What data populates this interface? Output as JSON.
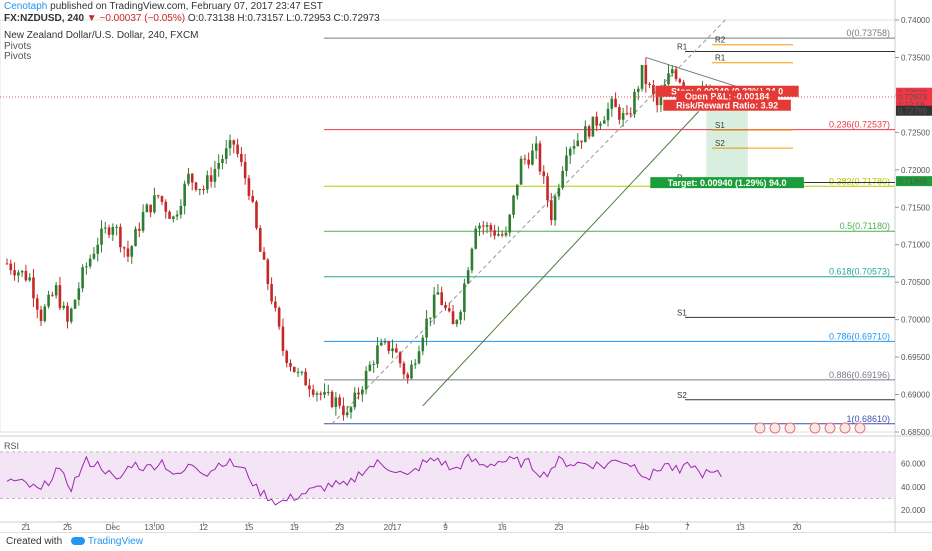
{
  "header": {
    "author": "Cenotaph",
    "published": " published on TradingView.com, February 07, 2017 23:47 EST",
    "symbol": "FX:NZDUSD, 240",
    "change": "▼ −0.00037 (−0.05%)",
    "ohlc": "O:0.73138 H:0.73157 L:0.72953 C:0.72973",
    "instrument": "New Zealand Dollar/U.S. Dollar, 240, FXCM",
    "indicator1": "Pivots",
    "indicator2": "Pivots",
    "rsi_label": "RSI"
  },
  "footer": {
    "created_with": "Created with",
    "brand": "TradingView"
  },
  "colors": {
    "up": "#2e7d32",
    "down": "#c62828",
    "rsi": "#9c27b0",
    "rsi_fill": "#f3e5f5"
  },
  "chart_data": {
    "type": "candlestick",
    "price_axis": {
      "min": 0.685,
      "max": 0.74,
      "ticks": [
        "0.74000",
        "0.73500",
        "0.73000",
        "0.72500",
        "0.72000",
        "0.71500",
        "0.71000",
        "0.70500",
        "0.70000",
        "0.69500",
        "0.69000",
        "0.68500"
      ]
    },
    "rsi_axis": {
      "ticks": [
        "60.000",
        "40.000",
        "20.000"
      ],
      "upper": 70,
      "lower": 30
    },
    "x_ticks": [
      {
        "label": "21",
        "idx": 5
      },
      {
        "label": "25",
        "idx": 16
      },
      {
        "label": "Dec",
        "idx": 28
      },
      {
        "label": "13:00",
        "idx": 39
      },
      {
        "label": "12",
        "idx": 52
      },
      {
        "label": "15",
        "idx": 64
      },
      {
        "label": "19",
        "idx": 76
      },
      {
        "label": "23",
        "idx": 88
      },
      {
        "label": "2017",
        "idx": 102
      },
      {
        "label": "9",
        "idx": 116
      },
      {
        "label": "16",
        "idx": 131
      },
      {
        "label": "23",
        "idx": 146
      },
      {
        "label": "Feb",
        "idx": 168
      },
      {
        "label": "7",
        "idx": 180
      },
      {
        "label": "13",
        "idx": 194
      },
      {
        "label": "20",
        "idx": 209
      }
    ],
    "candle_count": 190,
    "price_path": [
      [
        0,
        0.7075
      ],
      [
        6,
        0.7055
      ],
      [
        9,
        0.7005
      ],
      [
        13,
        0.704
      ],
      [
        16,
        0.6995
      ],
      [
        20,
        0.706
      ],
      [
        24,
        0.7105
      ],
      [
        28,
        0.713
      ],
      [
        32,
        0.7085
      ],
      [
        36,
        0.714
      ],
      [
        40,
        0.7165
      ],
      [
        44,
        0.7135
      ],
      [
        48,
        0.719
      ],
      [
        52,
        0.7175
      ],
      [
        56,
        0.721
      ],
      [
        60,
        0.7235
      ],
      [
        62,
        0.7205
      ],
      [
        64,
        0.7175
      ],
      [
        67,
        0.709
      ],
      [
        70,
        0.703
      ],
      [
        73,
        0.696
      ],
      [
        77,
        0.6925
      ],
      [
        80,
        0.6915
      ],
      [
        84,
        0.6895
      ],
      [
        88,
        0.689
      ],
      [
        90,
        0.687
      ],
      [
        94,
        0.6915
      ],
      [
        98,
        0.696
      ],
      [
        102,
        0.6965
      ],
      [
        106,
        0.692
      ],
      [
        110,
        0.6985
      ],
      [
        114,
        0.7035
      ],
      [
        118,
        0.699
      ],
      [
        120,
        0.702
      ],
      [
        124,
        0.713
      ],
      [
        128,
        0.712
      ],
      [
        132,
        0.711
      ],
      [
        136,
        0.721
      ],
      [
        140,
        0.7225
      ],
      [
        144,
        0.714
      ],
      [
        148,
        0.723
      ],
      [
        152,
        0.7245
      ],
      [
        156,
        0.7265
      ],
      [
        160,
        0.7285
      ],
      [
        164,
        0.7265
      ],
      [
        168,
        0.733
      ],
      [
        172,
        0.7285
      ],
      [
        176,
        0.7335
      ],
      [
        180,
        0.731
      ],
      [
        183,
        0.73
      ],
      [
        189,
        0.7297
      ]
    ],
    "rsi_path": [
      [
        0,
        46
      ],
      [
        5,
        42
      ],
      [
        9,
        36
      ],
      [
        13,
        55
      ],
      [
        17,
        40
      ],
      [
        21,
        62
      ],
      [
        25,
        58
      ],
      [
        29,
        44
      ],
      [
        33,
        60
      ],
      [
        37,
        56
      ],
      [
        41,
        62
      ],
      [
        45,
        48
      ],
      [
        49,
        60
      ],
      [
        53,
        52
      ],
      [
        57,
        62
      ],
      [
        61,
        58
      ],
      [
        64,
        50
      ],
      [
        66,
        38
      ],
      [
        69,
        32
      ],
      [
        72,
        26
      ],
      [
        75,
        30
      ],
      [
        78,
        34
      ],
      [
        82,
        38
      ],
      [
        86,
        42
      ],
      [
        90,
        40
      ],
      [
        94,
        54
      ],
      [
        98,
        60
      ],
      [
        102,
        56
      ],
      [
        106,
        48
      ],
      [
        110,
        60
      ],
      [
        114,
        64
      ],
      [
        118,
        54
      ],
      [
        122,
        64
      ],
      [
        126,
        58
      ],
      [
        130,
        62
      ],
      [
        134,
        62
      ],
      [
        138,
        60
      ],
      [
        142,
        50
      ],
      [
        146,
        62
      ],
      [
        150,
        60
      ],
      [
        154,
        60
      ],
      [
        158,
        58
      ],
      [
        162,
        64
      ],
      [
        166,
        58
      ],
      [
        170,
        48
      ],
      [
        174,
        60
      ],
      [
        178,
        52
      ],
      [
        181,
        60
      ],
      [
        183,
        52
      ],
      [
        189,
        50
      ]
    ],
    "fibonacci": [
      {
        "label": "0(0.73758)",
        "value": 0.73758,
        "color": "#787b86"
      },
      {
        "label": "0.236(0.72537)",
        "value": 0.72537,
        "color": "#f23645"
      },
      {
        "label": "0.382(0.71780)",
        "value": 0.7178,
        "color": "#b5c900"
      },
      {
        "label": "0.5(0.71180)",
        "value": 0.7118,
        "color": "#4caf50"
      },
      {
        "label": "0.618(0.70573)",
        "value": 0.70573,
        "color": "#26a69a"
      },
      {
        "label": "0.786(0.69710)",
        "value": 0.6971,
        "color": "#2196f3"
      },
      {
        "label": "0.886(0.69196)",
        "value": 0.69196,
        "color": "#787b86"
      },
      {
        "label": "1(0.68610)",
        "value": 0.6861,
        "color": "#3f51b5"
      }
    ],
    "pivots": [
      {
        "label": "R2",
        "value": 0.7367,
        "color": "#ff9800"
      },
      {
        "label": "R1",
        "value": 0.7343,
        "color": "#ff9800"
      },
      {
        "label": "S1",
        "value": 0.7253,
        "color": "#ff9800"
      },
      {
        "label": "S2",
        "value": 0.7229,
        "color": "#ff9800"
      },
      {
        "label": "R1",
        "value": 0.7358,
        "color": "#333333"
      },
      {
        "label": "P",
        "value": 0.7183,
        "color": "#333333"
      },
      {
        "label": "S1",
        "value": 0.7003,
        "color": "#333333"
      },
      {
        "label": "S2",
        "value": 0.6893,
        "color": "#333333"
      }
    ],
    "price_tags": [
      {
        "text": "0.73029",
        "value": 0.73029,
        "color": "#f23645"
      },
      {
        "text": "0.72973",
        "value": 0.72973,
        "color": "#f23645"
      },
      {
        "text": "1:12:16",
        "value": 0.7287,
        "color": "#f23645"
      },
      {
        "text": "0.72789",
        "value": 0.72789,
        "color": "#333333"
      },
      {
        "text": "0.71849",
        "value": 0.71849,
        "color": "#1b9e3a"
      }
    ],
    "position": {
      "stop_label": "Stop: 0.00240 (0.33%) 24.0",
      "pnl_label": "Open P&L: -0.00184",
      "rr_label": "Risk/Reward Ratio: 3.92",
      "target_label": "Target: 0.00940 (1.29%) 94.0",
      "entry": 0.72789,
      "stop": 0.73029,
      "target": 0.71849
    }
  }
}
